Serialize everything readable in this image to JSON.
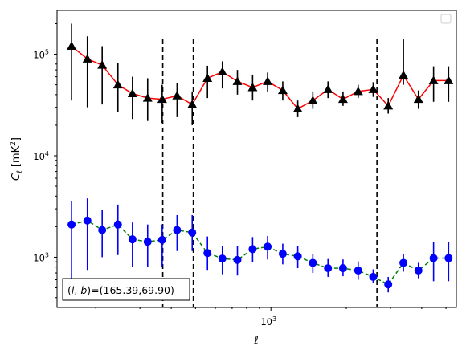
{
  "chart_data": {
    "type": "scatter",
    "xscale": "log",
    "yscale": "log",
    "xlim": [
      140,
      5500
    ],
    "ylim": [
      320,
      270000
    ],
    "xlabel": "ℓ",
    "ylabel": "C_ℓ  [mK²]",
    "xtick_labels": [
      {
        "value": 1000,
        "mantissa": "10",
        "exp": "3"
      }
    ],
    "ytick_labels": [
      {
        "value": 1000,
        "mantissa": "10",
        "exp": "3"
      },
      {
        "value": 10000,
        "mantissa": "10",
        "exp": "4"
      },
      {
        "value": 100000,
        "mantissa": "10",
        "exp": "5"
      }
    ],
    "vlines": [
      370,
      490,
      2650
    ],
    "annotation": "(l, b)=(165.39,69.90)",
    "annotation_parts": {
      "prefix": "(",
      "l": "l",
      "sep": ", ",
      "b": "b",
      "suffix": ")=(165.39,69.90)"
    },
    "legend": {
      "position": "top-right",
      "entries": []
    },
    "series": [
      {
        "marker": "triangle",
        "color": "#000000",
        "line_color": "#ff0000",
        "line_style": "solid",
        "x": [
          160,
          185,
          212,
          245,
          280,
          322,
          368,
          422,
          485,
          558,
          640,
          735,
          845,
          970,
          1115,
          1280,
          1470,
          1690,
          1940,
          2230,
          2560,
          2940,
          3380,
          3880,
          4460,
          5120
        ],
        "y": [
          120000,
          90000,
          78000,
          50000,
          41000,
          37000,
          36000,
          39000,
          32000,
          58000,
          67000,
          54000,
          47000,
          54000,
          44000,
          29000,
          35000,
          45000,
          36000,
          43000,
          45000,
          31000,
          62000,
          36000,
          55000,
          55000
        ],
        "yerr_low": [
          35000,
          30000,
          32000,
          27000,
          23000,
          22000,
          21000,
          24000,
          20000,
          37000,
          46000,
          40000,
          35000,
          43000,
          35000,
          24000,
          29000,
          37000,
          31000,
          37000,
          38000,
          26000,
          50000,
          29000,
          34000,
          34000
        ],
        "yerr_high": [
          200000,
          150000,
          120000,
          82000,
          60000,
          58000,
          50000,
          52000,
          43000,
          77000,
          85000,
          70000,
          63000,
          66000,
          54000,
          35000,
          43000,
          54000,
          43000,
          50000,
          53000,
          37000,
          140000,
          44000,
          76000,
          76000
        ]
      },
      {
        "marker": "circle",
        "color": "#0000ff",
        "line_color": "#008000",
        "line_style": "dashed",
        "x": [
          160,
          185,
          212,
          245,
          280,
          322,
          368,
          422,
          485,
          558,
          640,
          735,
          845,
          970,
          1115,
          1280,
          1470,
          1690,
          1940,
          2230,
          2560,
          2940,
          3380,
          3880,
          4460,
          5120
        ],
        "y": [
          2100,
          2300,
          1850,
          2100,
          1500,
          1420,
          1480,
          1850,
          1750,
          1100,
          970,
          940,
          1200,
          1270,
          1080,
          1020,
          880,
          780,
          780,
          740,
          640,
          540,
          880,
          740,
          980,
          980
        ],
        "yerr_low": [
          620,
          750,
          1000,
          1050,
          800,
          800,
          800,
          1150,
          1150,
          750,
          680,
          660,
          900,
          950,
          850,
          780,
          700,
          640,
          650,
          600,
          560,
          450,
          720,
          620,
          580,
          580
        ],
        "yerr_high": [
          3600,
          3800,
          2900,
          3300,
          2200,
          2100,
          2100,
          2600,
          2600,
          1600,
          1300,
          1280,
          1580,
          1620,
          1360,
          1290,
          1070,
          960,
          950,
          910,
          760,
          640,
          1070,
          880,
          1400,
          1400
        ]
      }
    ]
  }
}
